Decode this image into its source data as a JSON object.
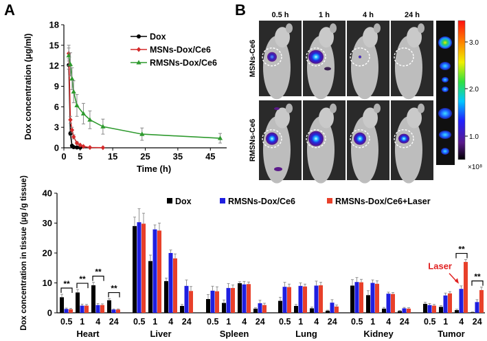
{
  "panel_labels": {
    "a": "A",
    "b": "B"
  },
  "colors": {
    "dox": "#000000",
    "msns": "#d42a2a",
    "rmsns": "#2e9a2e",
    "bar_dox": "#000000",
    "bar_rmsns": "#1f1fe0",
    "bar_laser": "#e8402a",
    "laser_note": "#e02020"
  },
  "imaging": {
    "time_labels": [
      "0.5 h",
      "1 h",
      "4 h",
      "24 h"
    ],
    "row_labels": [
      "MSNs-Ce6",
      "RMSNs-Ce6"
    ],
    "colorbar_ticks": [
      "3.0",
      "2.0",
      "1.0"
    ],
    "colorbar_unit": "×10⁸"
  },
  "chart_data": [
    {
      "type": "line",
      "title": "",
      "xlabel": "Time (h)",
      "ylabel": "Dox concentration (μg/ml)",
      "xlim": [
        0,
        50
      ],
      "ylim": [
        0,
        18
      ],
      "xticks": [
        0,
        5,
        15,
        25,
        35,
        45
      ],
      "yticks": [
        0,
        3,
        6,
        9,
        12,
        15,
        18
      ],
      "legend": "top-right",
      "series": [
        {
          "name": "Dox",
          "color": "#000000",
          "marker": "circle",
          "x": [
            1.5,
            2,
            2.5,
            3,
            4,
            5
          ],
          "y": [
            12.1,
            2.1,
            0.3,
            0.1,
            0.05,
            0.02
          ],
          "err": [
            0.6,
            0.3,
            0.1,
            0.05,
            0.02,
            0.02
          ]
        },
        {
          "name": "MSNs-Dox/Ce6",
          "color": "#d42a2a",
          "marker": "diamond",
          "x": [
            1.5,
            2,
            2.5,
            3,
            4,
            5,
            6,
            8,
            12
          ],
          "y": [
            13.8,
            4.1,
            2.6,
            1.6,
            0.7,
            0.4,
            0.2,
            0.05,
            0.02
          ],
          "err": [
            0.8,
            0.5,
            0.4,
            0.3,
            0.2,
            0.1,
            0.1,
            0.05,
            0.02
          ]
        },
        {
          "name": "RMSNs-Dox/Ce6",
          "color": "#2e9a2e",
          "marker": "triangle",
          "x": [
            1.5,
            2,
            2.5,
            3,
            4,
            6,
            8,
            12,
            24,
            48
          ],
          "y": [
            13.5,
            12.2,
            10.1,
            8.2,
            6.2,
            5.0,
            4.1,
            3.1,
            2.0,
            1.4
          ],
          "err": [
            1.5,
            1.7,
            1.6,
            1.6,
            1.6,
            1.5,
            1.3,
            1.1,
            0.9,
            0.7
          ]
        }
      ]
    },
    {
      "type": "bar",
      "title": "",
      "xlabel": "",
      "ylabel": "Dox concentration in tissue (μg /g tissue)",
      "ylim": [
        0,
        40
      ],
      "yticks": [
        0,
        10,
        20,
        30,
        40
      ],
      "legend": "top",
      "timepoints": [
        "0.5",
        "1",
        "4",
        "24"
      ],
      "groups": [
        "Heart",
        "Liver",
        "Spleen",
        "Lung",
        "Kidney",
        "Tumor"
      ],
      "series": [
        {
          "name": "Dox",
          "color": "#000000",
          "values": [
            [
              5.2,
              6.8,
              9.2,
              4.2
            ],
            [
              29.0,
              17.3,
              10.6,
              2.3
            ],
            [
              4.6,
              3.3,
              9.9,
              1.4
            ],
            [
              4.0,
              2.3,
              1.5,
              0.7
            ],
            [
              9.1,
              5.9,
              1.4,
              0.6
            ],
            [
              3.0,
              2.0,
              0.9,
              0.2
            ]
          ],
          "errors": [
            [
              1.0,
              1.0,
              1.0,
              0.5
            ],
            [
              3.0,
              2.0,
              1.0,
              0.5
            ],
            [
              1.5,
              1.0,
              0.5,
              0.3
            ],
            [
              1.2,
              0.5,
              0.4,
              0.2
            ],
            [
              2.0,
              1.5,
              0.4,
              0.2
            ],
            [
              0.5,
              0.4,
              0.3,
              0.1
            ]
          ]
        },
        {
          "name": "RMSNs-Dox/Ce6",
          "color": "#1f1fe0",
          "values": [
            [
              1.3,
              2.4,
              2.6,
              1.1
            ],
            [
              30.3,
              27.9,
              20.0,
              9.0
            ],
            [
              7.4,
              8.3,
              9.5,
              3.2
            ],
            [
              8.7,
              9.0,
              9.1,
              3.4
            ],
            [
              10.3,
              10.0,
              6.4,
              1.5
            ],
            [
              2.6,
              5.8,
              8.0,
              3.6
            ]
          ],
          "errors": [
            [
              0.3,
              0.5,
              0.5,
              0.2
            ],
            [
              4.5,
              1.5,
              1.0,
              2.0
            ],
            [
              1.5,
              1.5,
              1.0,
              1.0
            ],
            [
              1.5,
              1.0,
              1.5,
              1.0
            ],
            [
              1.5,
              1.0,
              0.5,
              0.3
            ],
            [
              0.5,
              0.8,
              1.0,
              0.8
            ]
          ]
        },
        {
          "name": "RMSNs-Dox/Ce6+Laser",
          "color": "#e8402a",
          "values": [
            [
              1.2,
              2.4,
              2.6,
              1.1
            ],
            [
              29.8,
              27.5,
              18.2,
              7.3
            ],
            [
              7.2,
              8.3,
              9.6,
              2.6
            ],
            [
              8.6,
              8.8,
              9.2,
              2.1
            ],
            [
              10.2,
              9.7,
              6.3,
              1.4
            ],
            [
              2.4,
              6.5,
              17.0,
              7.6
            ]
          ],
          "errors": [
            [
              0.3,
              0.4,
              0.4,
              0.2
            ],
            [
              3.5,
              2.5,
              1.5,
              1.5
            ],
            [
              1.5,
              1.0,
              0.7,
              0.6
            ],
            [
              1.0,
              0.8,
              1.0,
              0.5
            ],
            [
              1.0,
              1.0,
              0.5,
              0.3
            ],
            [
              0.4,
              0.6,
              0.8,
              1.0
            ]
          ]
        }
      ],
      "significance": {
        "label": "**",
        "pairs": [
          {
            "group": 0,
            "time": 0
          },
          {
            "group": 0,
            "time": 1
          },
          {
            "group": 0,
            "time": 2
          },
          {
            "group": 0,
            "time": 3
          },
          {
            "group": 5,
            "time": 2
          },
          {
            "group": 5,
            "time": 3
          }
        ]
      },
      "annotation": {
        "text": "Laser",
        "group": 5,
        "time": 2
      }
    }
  ]
}
